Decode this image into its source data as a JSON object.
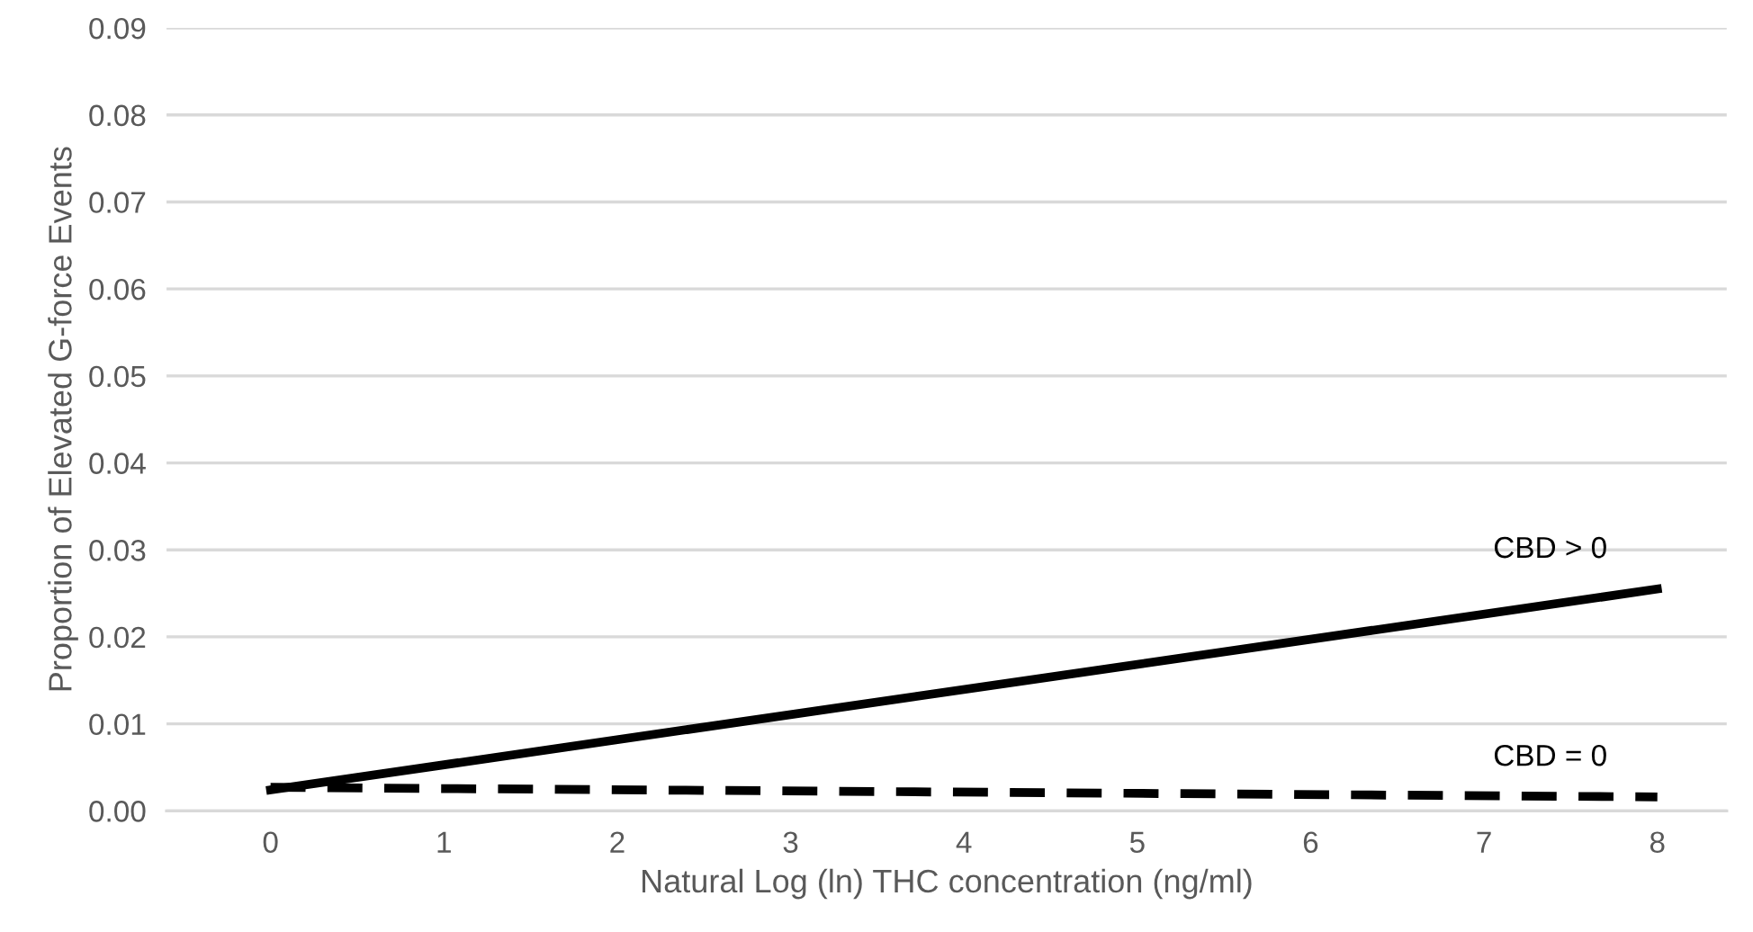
{
  "chart_data": {
    "type": "line",
    "xlabel": "Natural Log (ln) THC concentration (ng/ml)",
    "ylabel": "Proportion of Elevated G-force Events",
    "x": [
      0,
      8
    ],
    "xlim": [
      -0.6,
      8.4
    ],
    "xticks": [
      0,
      1,
      2,
      3,
      4,
      5,
      6,
      7,
      8
    ],
    "ylim": [
      0,
      0.09
    ],
    "yticks": [
      {
        "value": 0,
        "label": "0.00"
      },
      {
        "value": 0.01,
        "label": "0.01"
      },
      {
        "value": 0.02,
        "label": "0.02"
      },
      {
        "value": 0.03,
        "label": "0.03"
      },
      {
        "value": 0.04,
        "label": "0.04"
      },
      {
        "value": 0.05,
        "label": "0.05"
      },
      {
        "value": 0.06,
        "label": "0.06"
      },
      {
        "value": 0.07,
        "label": "0.07"
      },
      {
        "value": 0.08,
        "label": "0.08"
      },
      {
        "value": 0.09,
        "label": "0.09"
      }
    ],
    "grid": "y",
    "legend": false,
    "marker": "none",
    "series": [
      {
        "name": "CBD > 0",
        "color": "#000000",
        "values": [
          0.0024,
          0.0255
        ],
        "line_style": "solid"
      },
      {
        "name": "CBD = 0",
        "color": "#000000",
        "values": [
          0.0027,
          0.0016
        ],
        "line_style": "dashed"
      }
    ]
  }
}
